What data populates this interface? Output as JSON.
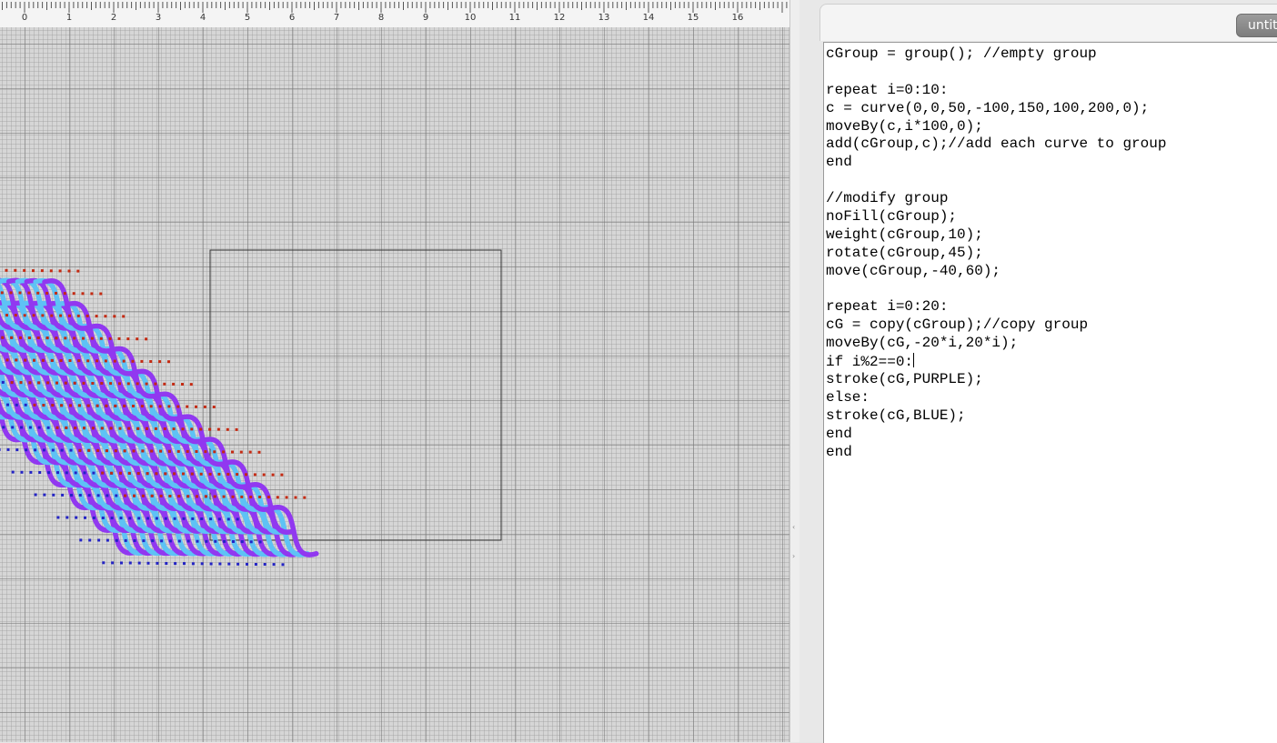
{
  "editor": {
    "tab_title": "untitled",
    "code": [
      "cGroup = group(); //empty group",
      "",
      "repeat i=0:10:",
      "c = curve(0,0,50,-100,150,100,200,0);",
      "moveBy(c,i*100,0);",
      "add(cGroup,c);//add each curve to group",
      "end",
      "",
      "//modify group",
      "noFill(cGroup);",
      "weight(cGroup,10);",
      "rotate(cGroup,45);",
      "move(cGroup,-40,60);",
      "",
      "repeat i=0:20:",
      "cG = copy(cGroup);//copy group",
      "moveBy(cG,-20*i,20*i);",
      "if i%2==0:",
      "stroke(cG,PURPLE);",
      "else:",
      "stroke(cG,BLUE);",
      "end",
      "end"
    ],
    "caret_line": 17
  },
  "ruler": {
    "labels": [
      "0",
      "1",
      "2",
      "3",
      "4",
      "5",
      "6",
      "7",
      "8",
      "9",
      "10",
      "11",
      "12",
      "13",
      "14",
      "15",
      "16"
    ]
  },
  "canvas": {
    "copies": 21,
    "curves_per_copy": 11,
    "group_rotation_deg": 45,
    "stroke_colors": {
      "PURPLE": "#9138f0",
      "BLUE": "#5ec2f5"
    },
    "control_point_colors": {
      "start": "#c42a12",
      "end": "#2323c4"
    },
    "grid_color": "#d6d6d6"
  }
}
